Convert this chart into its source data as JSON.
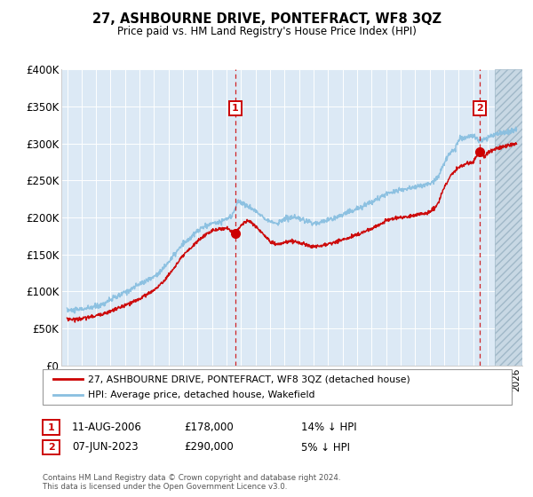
{
  "title": "27, ASHBOURNE DRIVE, PONTEFRACT, WF8 3QZ",
  "subtitle": "Price paid vs. HM Land Registry's House Price Index (HPI)",
  "legend_line1": "27, ASHBOURNE DRIVE, PONTEFRACT, WF8 3QZ (detached house)",
  "legend_line2": "HPI: Average price, detached house, Wakefield",
  "annotation1_date": "11-AUG-2006",
  "annotation1_price": "£178,000",
  "annotation1_hpi": "14% ↓ HPI",
  "annotation2_date": "07-JUN-2023",
  "annotation2_price": "£290,000",
  "annotation2_hpi": "5% ↓ HPI",
  "footer": "Contains HM Land Registry data © Crown copyright and database right 2024.\nThis data is licensed under the Open Government Licence v3.0.",
  "bg_color": "#dce9f5",
  "hpi_color": "#89bfe0",
  "price_color": "#cc0000",
  "ylim": [
    0,
    400000
  ],
  "yticks": [
    0,
    50000,
    100000,
    150000,
    200000,
    250000,
    300000,
    350000,
    400000
  ],
  "ytick_labels": [
    "£0",
    "£50K",
    "£100K",
    "£150K",
    "£200K",
    "£250K",
    "£300K",
    "£350K",
    "£400K"
  ],
  "sale1_x": 2006.6,
  "sale1_y": 178000,
  "sale2_x": 2023.43,
  "sale2_y": 290000,
  "xmin": 1994.6,
  "xmax": 2026.4,
  "hatch_start": 2024.5
}
